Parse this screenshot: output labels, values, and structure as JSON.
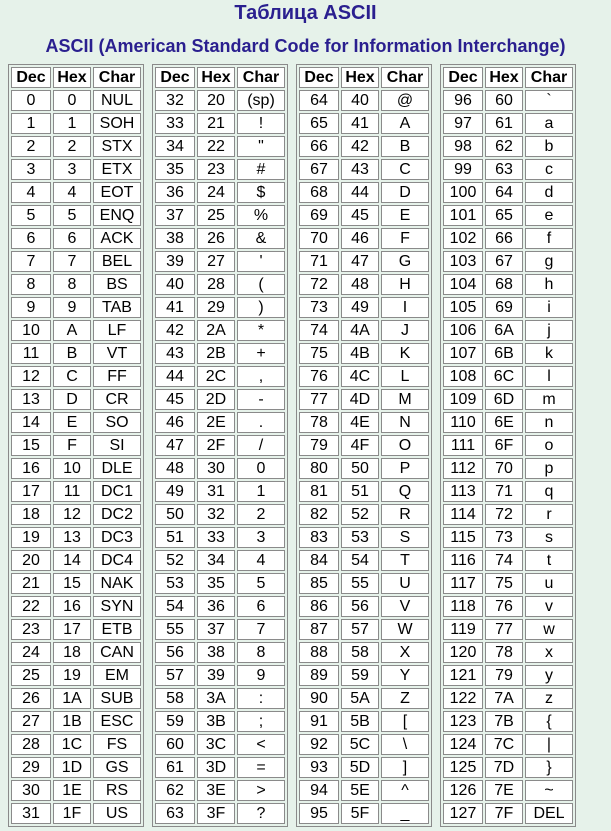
{
  "title": "Таблица ASCII",
  "subtitle": "ASCII (American Standard Code for Information Interchange)",
  "columns": [
    "Dec",
    "Hex",
    "Char"
  ],
  "chars": [
    "NUL",
    "SOH",
    "STX",
    "ETX",
    "EOT",
    "ENQ",
    "ACK",
    "BEL",
    "BS",
    "TAB",
    "LF",
    "VT",
    "FF",
    "CR",
    "SO",
    "SI",
    "DLE",
    "DC1",
    "DC2",
    "DC3",
    "DC4",
    "NAK",
    "SYN",
    "ETB",
    "CAN",
    "EM",
    "SUB",
    "ESC",
    "FS",
    "GS",
    "RS",
    "US",
    "(sp)",
    "!",
    "\"",
    "#",
    "$",
    "%",
    "&",
    "'",
    "(",
    ")",
    "*",
    "+",
    ",",
    "-",
    ".",
    "/",
    "0",
    "1",
    "2",
    "3",
    "4",
    "5",
    "6",
    "7",
    "8",
    "9",
    ":",
    ";",
    "<",
    "=",
    ">",
    "?",
    "@",
    "A",
    "B",
    "C",
    "D",
    "E",
    "F",
    "G",
    "H",
    "I",
    "J",
    "K",
    "L",
    "M",
    "N",
    "O",
    "P",
    "Q",
    "R",
    "S",
    "T",
    "U",
    "V",
    "W",
    "X",
    "Y",
    "Z",
    "[",
    "\\",
    "]",
    "^",
    "_",
    "`",
    "a",
    "b",
    "c",
    "d",
    "e",
    "f",
    "g",
    "h",
    "i",
    "j",
    "k",
    "l",
    "m",
    "n",
    "o",
    "p",
    "q",
    "r",
    "s",
    "t",
    "u",
    "v",
    "w",
    "x",
    "y",
    "z",
    "{",
    "|",
    "}",
    "~",
    "DEL"
  ],
  "colors": {
    "background": "#e6f2ea",
    "title": "#2a1f8f",
    "cell_border": "#8a8a8a"
  }
}
